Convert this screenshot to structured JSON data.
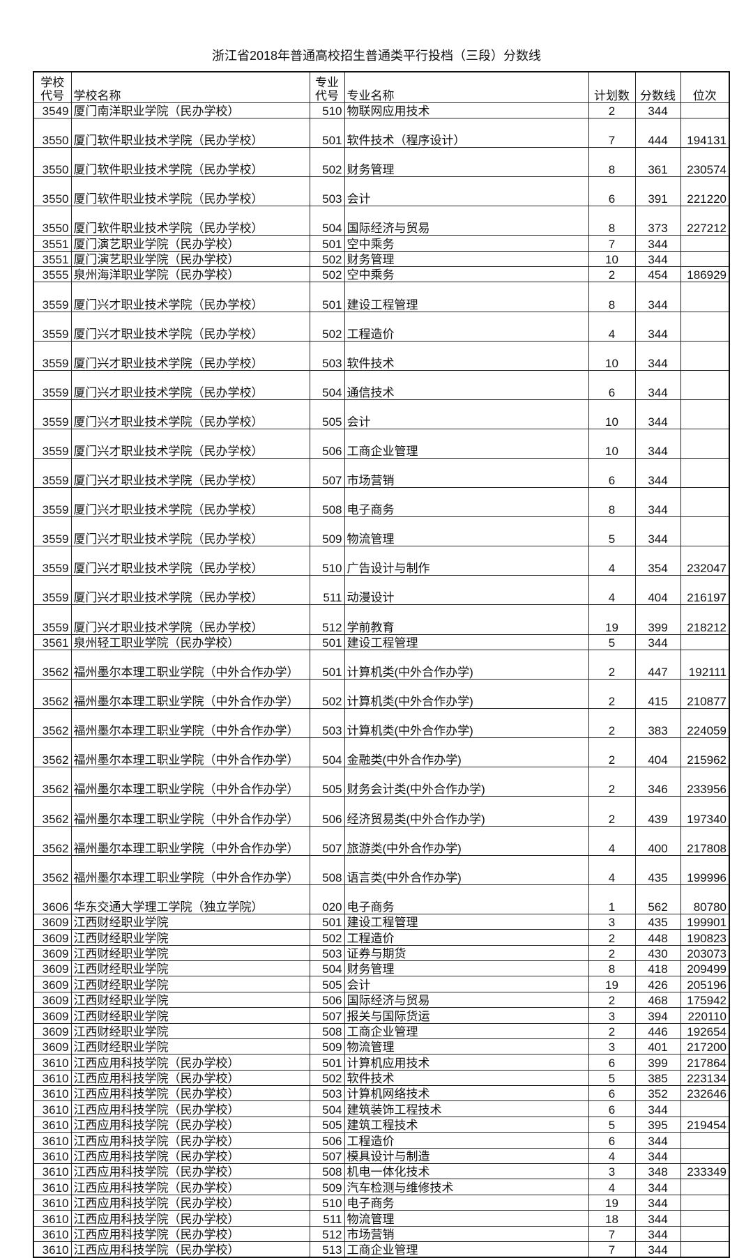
{
  "title": "浙江省2018年普通高校招生普通类平行投档（三段）分数线",
  "headers": {
    "school_code": "学校代号",
    "school_name": "学校名称",
    "major_code": "专业代号",
    "major_name": "专业名称",
    "plan": "计划数",
    "score": "分数线",
    "rank": "位次"
  },
  "rows": [
    [
      "3549",
      "厦门南洋职业学院（民办学校）",
      "510",
      "物联网应用技术",
      "2",
      "344",
      ""
    ],
    [
      "3550",
      "厦门软件职业技术学院（民办学校）",
      "501",
      "软件技术（程序设计）",
      "7",
      "444",
      "194131"
    ],
    [
      "3550",
      "厦门软件职业技术学院（民办学校）",
      "502",
      "财务管理",
      "8",
      "361",
      "230574"
    ],
    [
      "3550",
      "厦门软件职业技术学院（民办学校）",
      "503",
      "会计",
      "6",
      "391",
      "221220"
    ],
    [
      "3550",
      "厦门软件职业技术学院（民办学校）",
      "504",
      "国际经济与贸易",
      "8",
      "373",
      "227212"
    ],
    [
      "3551",
      "厦门演艺职业学院（民办学校）",
      "501",
      "空中乘务",
      "7",
      "344",
      ""
    ],
    [
      "3551",
      "厦门演艺职业学院（民办学校）",
      "502",
      "财务管理",
      "10",
      "344",
      ""
    ],
    [
      "3555",
      "泉州海洋职业学院（民办学校）",
      "502",
      "空中乘务",
      "2",
      "454",
      "186929"
    ],
    [
      "3559",
      "厦门兴才职业技术学院（民办学校）",
      "501",
      "建设工程管理",
      "8",
      "344",
      ""
    ],
    [
      "3559",
      "厦门兴才职业技术学院（民办学校）",
      "502",
      "工程造价",
      "4",
      "344",
      ""
    ],
    [
      "3559",
      "厦门兴才职业技术学院（民办学校）",
      "503",
      "软件技术",
      "10",
      "344",
      ""
    ],
    [
      "3559",
      "厦门兴才职业技术学院（民办学校）",
      "504",
      "通信技术",
      "6",
      "344",
      ""
    ],
    [
      "3559",
      "厦门兴才职业技术学院（民办学校）",
      "505",
      "会计",
      "10",
      "344",
      ""
    ],
    [
      "3559",
      "厦门兴才职业技术学院（民办学校）",
      "506",
      "工商企业管理",
      "10",
      "344",
      ""
    ],
    [
      "3559",
      "厦门兴才职业技术学院（民办学校）",
      "507",
      "市场营销",
      "6",
      "344",
      ""
    ],
    [
      "3559",
      "厦门兴才职业技术学院（民办学校）",
      "508",
      "电子商务",
      "8",
      "344",
      ""
    ],
    [
      "3559",
      "厦门兴才职业技术学院（民办学校）",
      "509",
      "物流管理",
      "5",
      "344",
      ""
    ],
    [
      "3559",
      "厦门兴才职业技术学院（民办学校）",
      "510",
      "广告设计与制作",
      "4",
      "354",
      "232047"
    ],
    [
      "3559",
      "厦门兴才职业技术学院（民办学校）",
      "511",
      "动漫设计",
      "4",
      "404",
      "216197"
    ],
    [
      "3559",
      "厦门兴才职业技术学院（民办学校）",
      "512",
      "学前教育",
      "19",
      "399",
      "218212"
    ],
    [
      "3561",
      "泉州轻工职业学院（民办学校）",
      "501",
      "建设工程管理",
      "5",
      "344",
      ""
    ],
    [
      "3562",
      "福州墨尔本理工职业学院（中外合作办学）",
      "501",
      "计算机类(中外合作办学)",
      "2",
      "447",
      "192111"
    ],
    [
      "3562",
      "福州墨尔本理工职业学院（中外合作办学）",
      "502",
      "计算机类(中外合作办学)",
      "2",
      "415",
      "210877"
    ],
    [
      "3562",
      "福州墨尔本理工职业学院（中外合作办学）",
      "503",
      "计算机类(中外合作办学)",
      "2",
      "383",
      "224059"
    ],
    [
      "3562",
      "福州墨尔本理工职业学院（中外合作办学）",
      "504",
      "金融类(中外合作办学)",
      "2",
      "404",
      "215962"
    ],
    [
      "3562",
      "福州墨尔本理工职业学院（中外合作办学）",
      "505",
      "财务会计类(中外合作办学)",
      "2",
      "346",
      "233956"
    ],
    [
      "3562",
      "福州墨尔本理工职业学院（中外合作办学）",
      "506",
      "经济贸易类(中外合作办学)",
      "2",
      "439",
      "197340"
    ],
    [
      "3562",
      "福州墨尔本理工职业学院（中外合作办学）",
      "507",
      "旅游类(中外合作办学)",
      "4",
      "400",
      "217808"
    ],
    [
      "3562",
      "福州墨尔本理工职业学院（中外合作办学）",
      "508",
      "语言类(中外合作办学)",
      "4",
      "435",
      "199996"
    ],
    [
      "3606",
      "华东交通大学理工学院（独立学院）",
      "020",
      "电子商务",
      "1",
      "562",
      "80780"
    ],
    [
      "3609",
      "江西财经职业学院",
      "501",
      "建设工程管理",
      "3",
      "435",
      "199901"
    ],
    [
      "3609",
      "江西财经职业学院",
      "502",
      "工程造价",
      "2",
      "448",
      "190823"
    ],
    [
      "3609",
      "江西财经职业学院",
      "503",
      "证券与期货",
      "2",
      "430",
      "203073"
    ],
    [
      "3609",
      "江西财经职业学院",
      "504",
      "财务管理",
      "8",
      "418",
      "209499"
    ],
    [
      "3609",
      "江西财经职业学院",
      "505",
      "会计",
      "19",
      "426",
      "205196"
    ],
    [
      "3609",
      "江西财经职业学院",
      "506",
      "国际经济与贸易",
      "2",
      "468",
      "175942"
    ],
    [
      "3609",
      "江西财经职业学院",
      "507",
      "报关与国际货运",
      "3",
      "394",
      "220110"
    ],
    [
      "3609",
      "江西财经职业学院",
      "508",
      "工商企业管理",
      "2",
      "446",
      "192654"
    ],
    [
      "3609",
      "江西财经职业学院",
      "509",
      "物流管理",
      "3",
      "401",
      "217200"
    ],
    [
      "3610",
      "江西应用科技学院（民办学校）",
      "501",
      "计算机应用技术",
      "6",
      "399",
      "217864"
    ],
    [
      "3610",
      "江西应用科技学院（民办学校）",
      "502",
      "软件技术",
      "5",
      "385",
      "223134"
    ],
    [
      "3610",
      "江西应用科技学院（民办学校）",
      "503",
      "计算机网络技术",
      "6",
      "352",
      "232646"
    ],
    [
      "3610",
      "江西应用科技学院（民办学校）",
      "504",
      "建筑装饰工程技术",
      "6",
      "344",
      ""
    ],
    [
      "3610",
      "江西应用科技学院（民办学校）",
      "505",
      "建筑工程技术",
      "5",
      "395",
      "219454"
    ],
    [
      "3610",
      "江西应用科技学院（民办学校）",
      "506",
      "工程造价",
      "6",
      "344",
      ""
    ],
    [
      "3610",
      "江西应用科技学院（民办学校）",
      "507",
      "模具设计与制造",
      "4",
      "344",
      ""
    ],
    [
      "3610",
      "江西应用科技学院（民办学校）",
      "508",
      "机电一体化技术",
      "3",
      "348",
      "233349"
    ],
    [
      "3610",
      "江西应用科技学院（民办学校）",
      "509",
      "汽车检测与维修技术",
      "4",
      "344",
      ""
    ],
    [
      "3610",
      "江西应用科技学院（民办学校）",
      "510",
      "电子商务",
      "19",
      "344",
      ""
    ],
    [
      "3610",
      "江西应用科技学院（民办学校）",
      "511",
      "物流管理",
      "18",
      "344",
      ""
    ],
    [
      "3610",
      "江西应用科技学院（民办学校）",
      "512",
      "市场营销",
      "7",
      "344",
      ""
    ],
    [
      "3610",
      "江西应用科技学院（民办学校）",
      "513",
      "工商企业管理",
      "7",
      "344",
      ""
    ]
  ]
}
